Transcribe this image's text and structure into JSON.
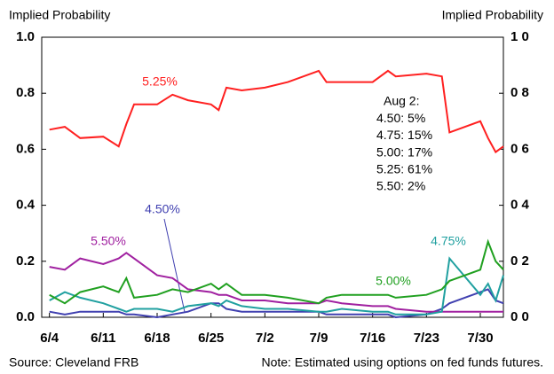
{
  "chart_data": {
    "type": "line",
    "ylabel": "Implied Probability",
    "y2label": "Implied Probability",
    "x": [
      "6/4",
      "6/6",
      "6/8",
      "6/11",
      "6/13",
      "6/14",
      "6/15",
      "6/18",
      "6/20",
      "6/22",
      "6/25",
      "6/26",
      "6/27",
      "6/29",
      "7/2",
      "7/5",
      "7/9",
      "7/10",
      "7/12",
      "7/16",
      "7/18",
      "7/19",
      "7/23",
      "7/25",
      "7/26",
      "7/30",
      "7/31",
      "8/1",
      "8/2"
    ],
    "xlim": [
      "6/3",
      "8/2"
    ],
    "xticks": [
      "6/4",
      "6/11",
      "6/18",
      "6/25",
      "7/2",
      "7/9",
      "7/16",
      "7/23",
      "7/30"
    ],
    "ylim": [
      0,
      1
    ],
    "yticks": [
      {
        "value": 0,
        "label": "0.0"
      },
      0.2,
      0.4,
      0.6,
      0.8,
      {
        "value": 1,
        "label": "1.0"
      }
    ],
    "y2lim": [
      0,
      1
    ],
    "y2ticks": [
      {
        "value": 0,
        "label": "0 0"
      },
      {
        "value": 0.2,
        "label": "0 2"
      },
      {
        "value": 0.4,
        "label": "0 4"
      },
      {
        "value": 0.6,
        "label": "0 6"
      },
      {
        "value": 0.8,
        "label": "0 8"
      },
      {
        "value": 1,
        "label": "1 0"
      }
    ],
    "series": [
      {
        "name": "5.25%",
        "color": "#ff2020",
        "values": [
          0.67,
          0.68,
          0.64,
          0.645,
          0.61,
          0.69,
          0.76,
          0.76,
          0.795,
          0.775,
          0.76,
          0.74,
          0.82,
          0.81,
          0.82,
          0.84,
          0.88,
          0.84,
          0.84,
          0.84,
          0.88,
          0.86,
          0.87,
          0.86,
          0.66,
          0.7,
          0.64,
          0.59,
          0.61
        ]
      },
      {
        "name": "4.50%",
        "color": "#4040b0",
        "values": [
          0.02,
          0.01,
          0.02,
          0.02,
          0.02,
          0.01,
          0.01,
          0.0,
          0.01,
          0.02,
          0.05,
          0.05,
          0.03,
          0.02,
          0.02,
          0.02,
          0.02,
          0.01,
          0.01,
          0.01,
          0.01,
          0.0,
          0.01,
          0.03,
          0.05,
          0.09,
          0.1,
          0.06,
          0.05
        ]
      },
      {
        "name": "5.50%",
        "color": "#a020a0",
        "values": [
          0.18,
          0.17,
          0.21,
          0.19,
          0.21,
          0.23,
          0.21,
          0.15,
          0.14,
          0.1,
          0.09,
          0.08,
          0.08,
          0.06,
          0.06,
          0.05,
          0.05,
          0.06,
          0.05,
          0.04,
          0.04,
          0.03,
          0.02,
          0.02,
          0.02,
          0.02,
          0.02,
          0.02,
          0.02
        ]
      },
      {
        "name": "4.75%",
        "color": "#20a0a0",
        "values": [
          0.06,
          0.09,
          0.07,
          0.05,
          0.03,
          0.02,
          0.03,
          0.03,
          0.02,
          0.04,
          0.05,
          0.04,
          0.06,
          0.04,
          0.03,
          0.03,
          0.02,
          0.02,
          0.03,
          0.02,
          0.02,
          0.01,
          0.01,
          0.02,
          0.21,
          0.08,
          0.12,
          0.06,
          0.15
        ]
      },
      {
        "name": "5.00%",
        "color": "#20a020",
        "values": [
          0.08,
          0.05,
          0.09,
          0.11,
          0.09,
          0.14,
          0.07,
          0.08,
          0.1,
          0.09,
          0.12,
          0.1,
          0.12,
          0.08,
          0.08,
          0.07,
          0.05,
          0.07,
          0.08,
          0.08,
          0.08,
          0.07,
          0.08,
          0.1,
          0.13,
          0.17,
          0.27,
          0.2,
          0.17
        ]
      }
    ],
    "annotation": [
      "Aug 2:",
      "4.50: 5%",
      "4.75: 15%",
      "5.00: 17%",
      "5.25: 61%",
      "5.50: 2%"
    ],
    "source": "Source: Cleveland FRB",
    "note": "Note: Estimated using options on fed funds futures."
  }
}
